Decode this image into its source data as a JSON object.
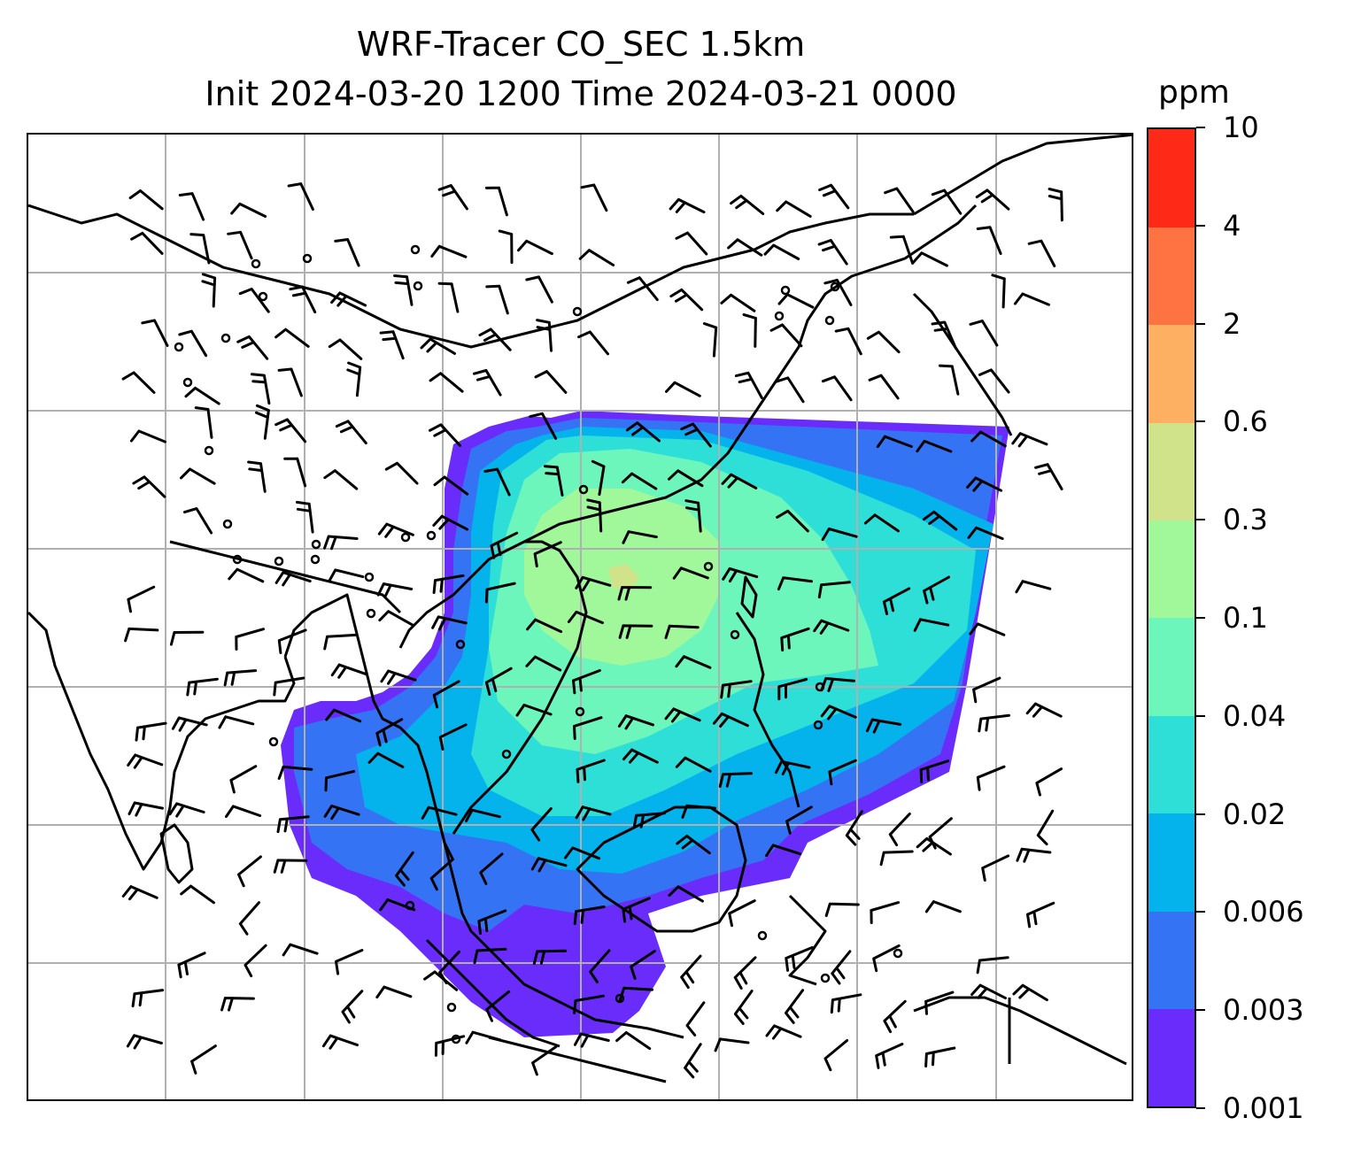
{
  "title": {
    "line1": "WRF-Tracer CO_SEC 1.5km",
    "line2": "Init 2024-03-20 1200 Time 2024-03-21 0000"
  },
  "colorbar": {
    "unit": "ppm",
    "ticks": [
      "0.001",
      "0.003",
      "0.006",
      "0.02",
      "0.04",
      "0.1",
      "0.3",
      "0.6",
      "2",
      "4",
      "10"
    ],
    "colors": [
      "#6a2cfb",
      "#3474f4",
      "#05b3ec",
      "#2edfd8",
      "#6cf6bc",
      "#a0f89a",
      "#d0e38a",
      "#fdb062",
      "#fe7341",
      "#fe2a17"
    ]
  },
  "chart_data": {
    "type": "map",
    "variable": "CO_SEC",
    "level": "1.5km",
    "init": "2024-03-20 1200",
    "valid": "2024-03-21 0000",
    "unit": "ppm",
    "levels": [
      0.001,
      0.003,
      0.006,
      0.02,
      0.04,
      0.1,
      0.3,
      0.6,
      2,
      4,
      10
    ],
    "overlays": [
      "coastlines",
      "country borders",
      "wind barbs",
      "lat/lon gridlines"
    ],
    "grid": true,
    "colors": {
      "gridline": "#b0b0b0",
      "coastline": "#000000"
    }
  }
}
